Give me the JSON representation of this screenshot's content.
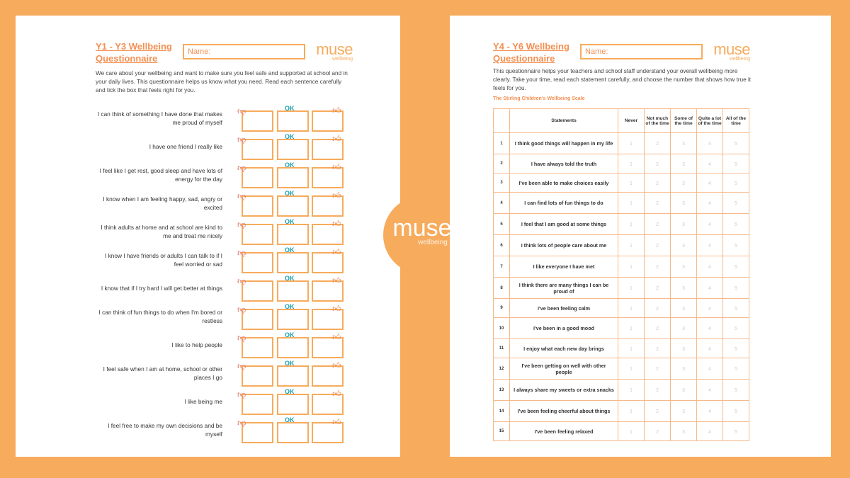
{
  "logo": {
    "brand": "muse",
    "sub": "wellbeing"
  },
  "left": {
    "title_line1": "Y1 - Y3 Wellbeing",
    "title_line2": "Questionnaire",
    "name_label": "Name:",
    "intro": "We care about your wellbeing and want to make sure you feel safe and supported at school and in your daily lives. This questionnaire helps us know what you need. Read each sentence carefully and tick the box that feels right for you.",
    "ok_label": "OK",
    "items": [
      "I can think of something I have done that makes me proud of myself",
      "I have one friend I really like",
      "I feel like I get rest, good sleep and have lots of energy for the day",
      "I know when I am feeling happy, sad, angry or excited",
      "I think adults at home and at school are kind to me and treat me nicely",
      "I know I have friends or adults I can talk to if I feel worried or sad",
      "I know that if I try hard I will get better at things",
      "I can think of fun things to do when I'm bored or restless",
      "I like to help people",
      "I feel safe when I am at home, school or other places I go",
      "I like being me",
      "I feel free to make my own decisions and be myself"
    ]
  },
  "right": {
    "title_line1": "Y4 - Y6 Wellbeing",
    "title_line2": "Questionnaire",
    "name_label": "Name:",
    "intro": "This questionnaire helps your teachers and school staff understand your overall wellbeing more clearly. Take your time, read each statement carefully, and choose the number that shows how true it feels for you.",
    "scale_title": "The Stirling Children's Wellbeing Scale",
    "headers": [
      "",
      "Statements",
      "Never",
      "Not much of the time",
      "Some of the time",
      "Quite a lot of the time",
      "All of the time"
    ],
    "scores": [
      "1",
      "2",
      "3",
      "4",
      "5"
    ],
    "rows": [
      "I think good things will happen in my life",
      "I have always told the truth",
      "I've been able to make choices easily",
      "I can find lots of fun things to do",
      "I feel that I am good at some things",
      "I think lots of people care about me",
      "I like everyone I have met",
      "I think there are many things I can be proud of",
      "I've been feeling calm",
      "I've been in a good mood",
      "I enjoy what each new day brings",
      "I've been getting on well with other people",
      "I always share my sweets or extra snacks",
      "I've been feeling cheerful about things",
      "I've been feeling relaxed"
    ]
  }
}
